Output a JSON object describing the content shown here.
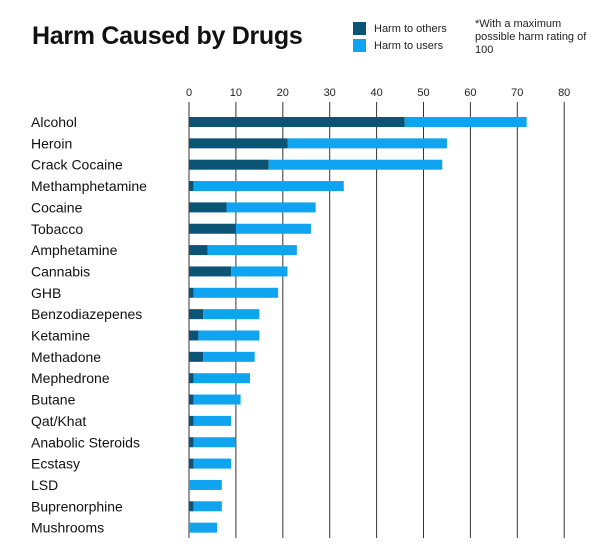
{
  "chart_data": {
    "type": "bar",
    "orientation": "horizontal",
    "stacked": true,
    "title": "Harm Caused by Drugs",
    "note": "*With a maximum possible harm rating of 100",
    "xlabel": "",
    "ylabel": "",
    "xlim": [
      0,
      80
    ],
    "x_ticks": [
      0,
      10,
      20,
      30,
      40,
      50,
      60,
      70,
      80
    ],
    "grid": "vertical",
    "legend_position": "top-right",
    "colors": {
      "others": "#0b5475",
      "users": "#0ea4f0",
      "grid": "#333333"
    },
    "categories": [
      "Alcohol",
      "Heroin",
      "Crack Cocaine",
      "Methamphetamine",
      "Cocaine",
      "Tobacco",
      "Amphetamine",
      "Cannabis",
      "GHB",
      "Benzodiazepenes",
      "Ketamine",
      "Methadone",
      "Mephedrone",
      "Butane",
      "Qat/Khat",
      "Anabolic Steroids",
      "Ecstasy",
      "LSD",
      "Buprenorphine",
      "Mushrooms"
    ],
    "series": [
      {
        "name": "Harm to others",
        "values": [
          46,
          21,
          17,
          1,
          8,
          10,
          4,
          9,
          1,
          3,
          2,
          3,
          1,
          1,
          1,
          1,
          1,
          0,
          1,
          0
        ]
      },
      {
        "name": "Harm to users",
        "values": [
          26,
          34,
          37,
          32,
          19,
          16,
          19,
          12,
          18,
          12,
          13,
          11,
          12,
          10,
          8,
          9,
          8,
          7,
          6,
          6
        ]
      }
    ]
  }
}
